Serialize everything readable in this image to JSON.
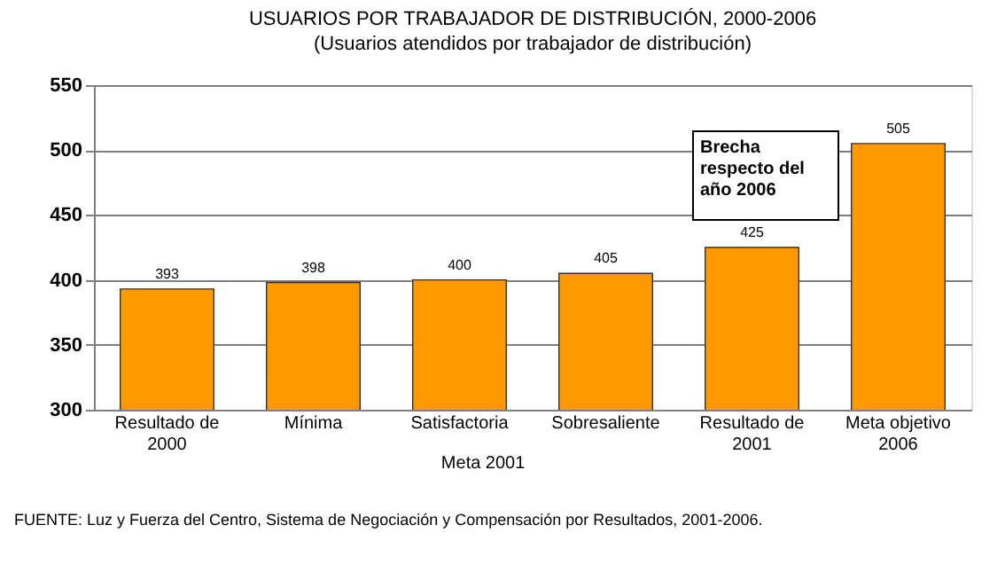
{
  "chart_data": {
    "type": "bar",
    "title": "USUARIOS POR  TRABAJADOR DE DISTRIBUCIÓN,  2000-2006",
    "subtitle": "(Usuarios atendidos por trabajador de distribución)",
    "categories": [
      "Resultado de 2000",
      "Mínima",
      "Satisfactoria",
      "Sobresaliente",
      "Resultado de 2001",
      "Meta objetivo 2006"
    ],
    "values": [
      393,
      398,
      400,
      405,
      425,
      505
    ],
    "color": "#ff9900",
    "ylim": [
      300,
      550
    ],
    "yticks": [
      300,
      350,
      400,
      450,
      500,
      550
    ],
    "grid": "y",
    "data_labels": true,
    "annotations": [
      "Meta 2001",
      "Brecha\nrespecto del\naño 2006",
      "FUENTE:    Luz y Fuerza del Centro, Sistema de Negociación y Compensación por Resultados, 2001-2006."
    ]
  }
}
